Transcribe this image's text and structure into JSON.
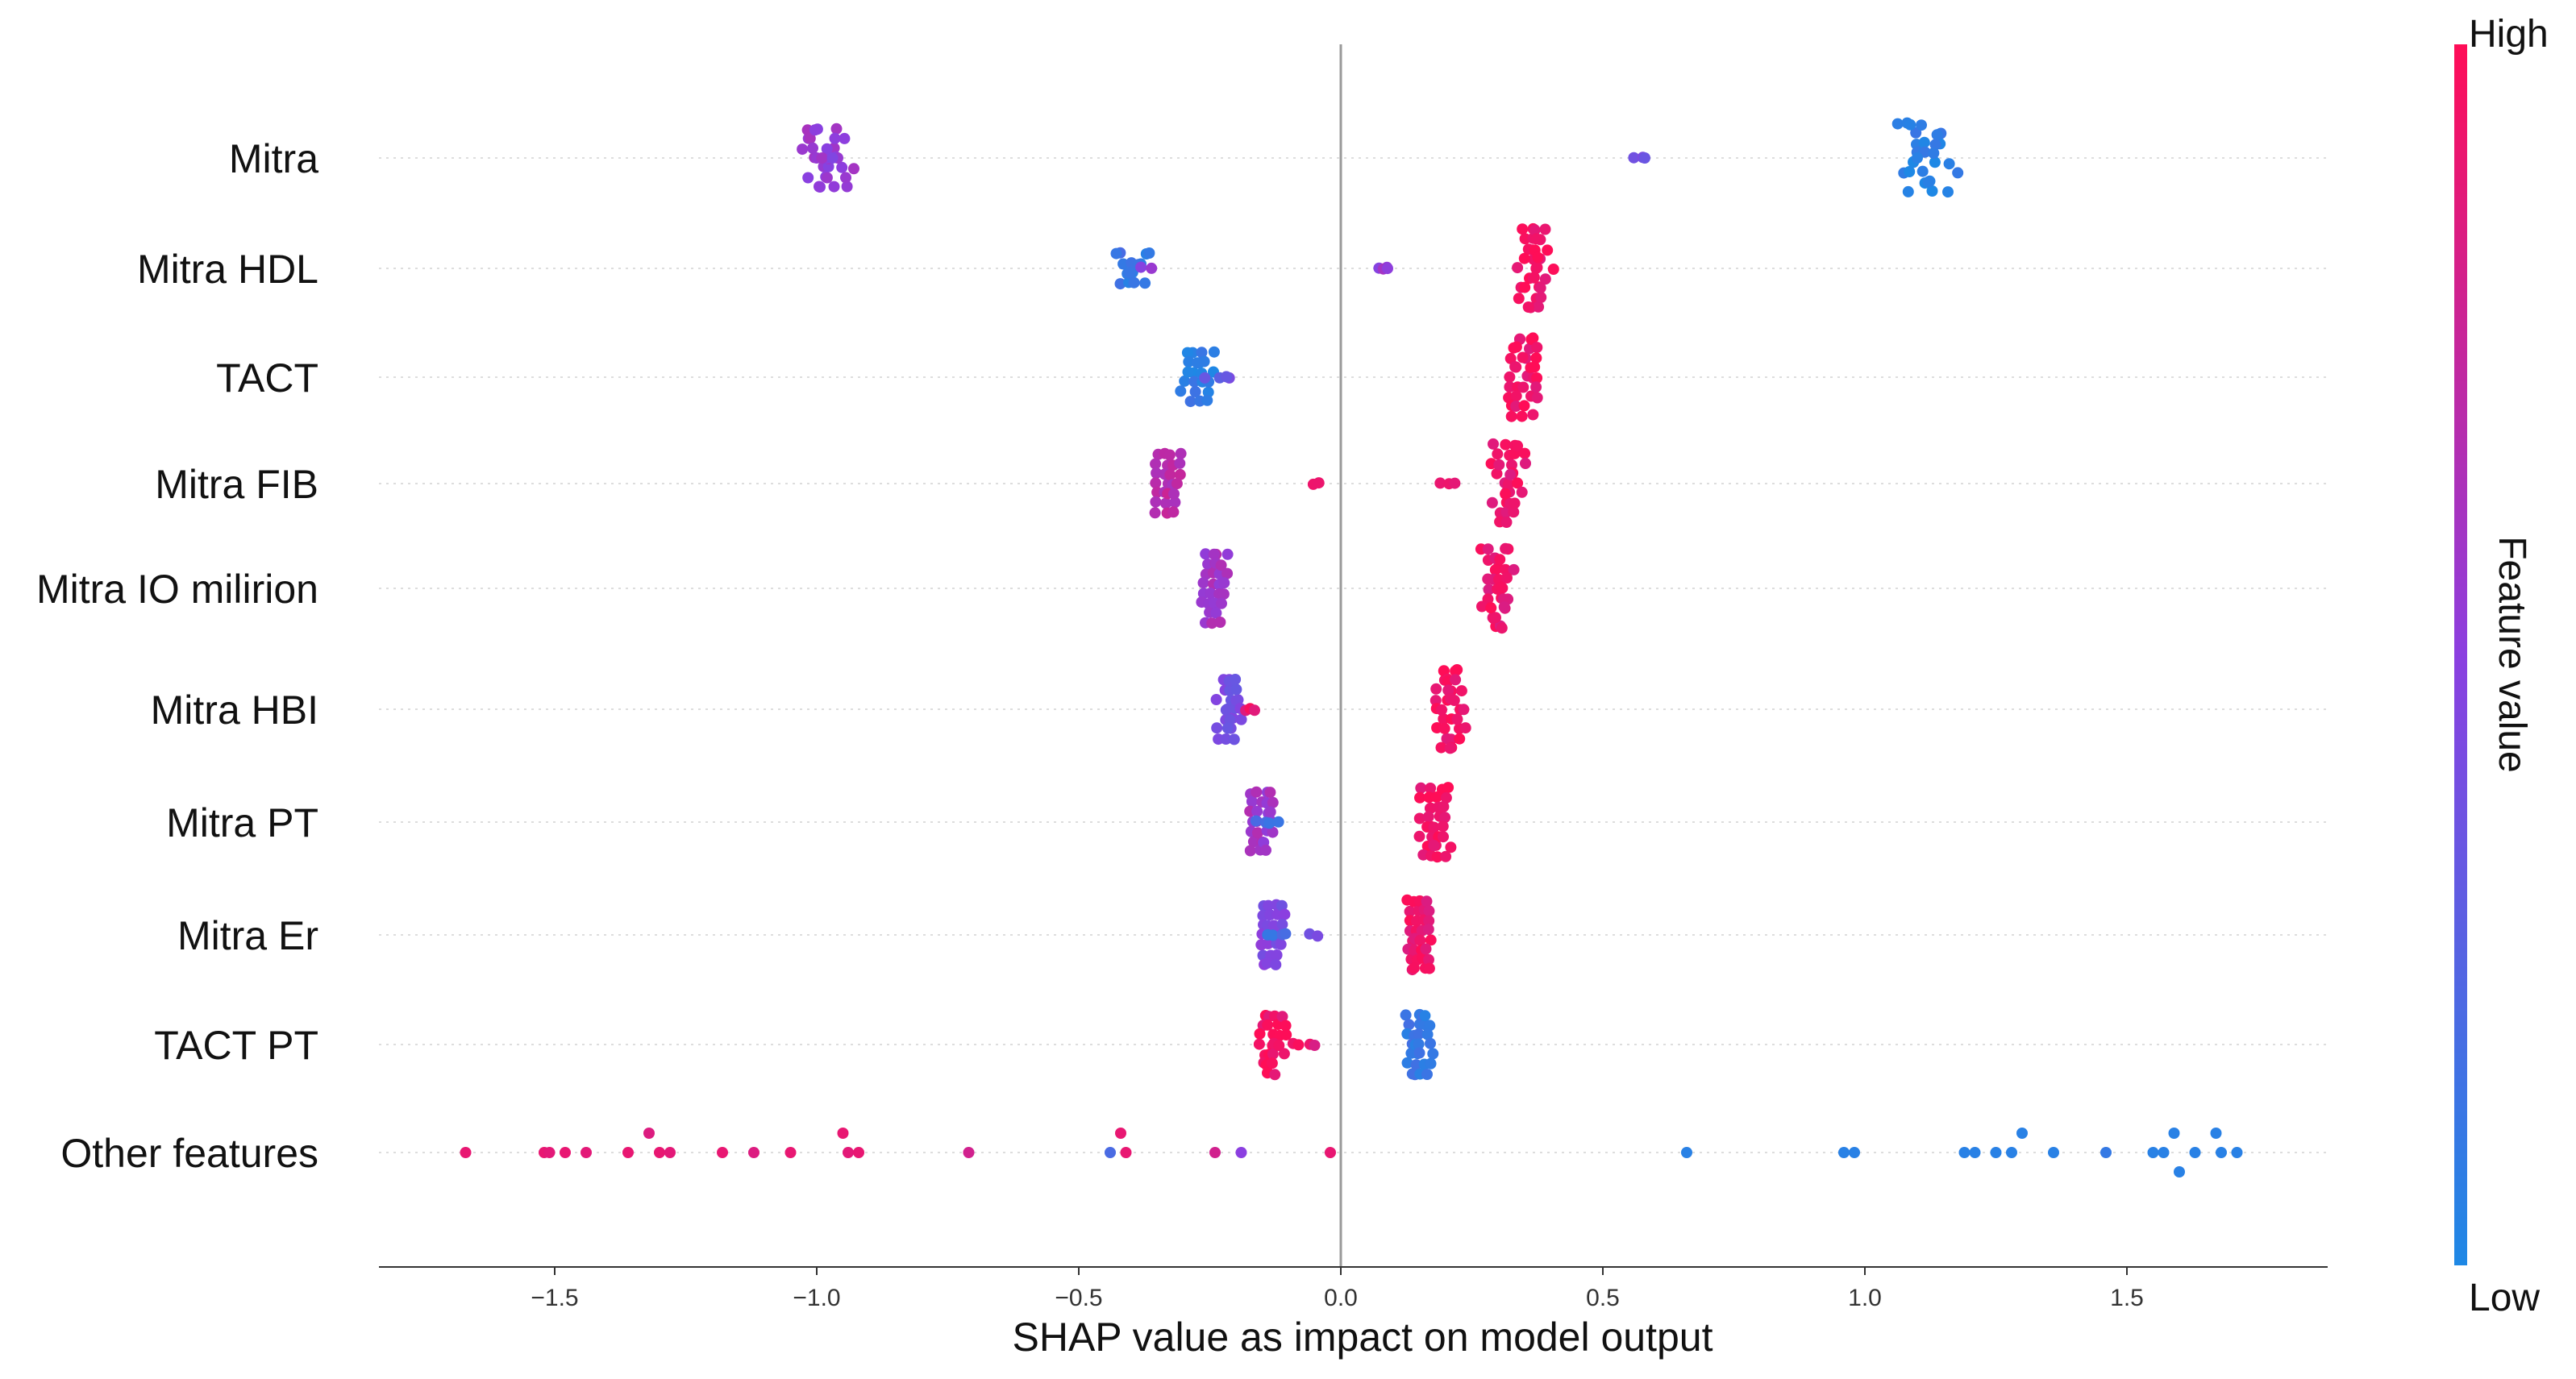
{
  "chart_data": {
    "type": "scatter",
    "subtype": "shap-beeswarm",
    "title": "",
    "xlabel": "SHAP value as impact on model output",
    "ylabel": "",
    "xlim": [
      -1.83,
      1.89
    ],
    "xticks": [
      -1.5,
      -1.0,
      -0.5,
      0.0,
      0.5,
      1.0,
      1.5
    ],
    "xtick_labels": [
      "−1.5",
      "−1.0",
      "−0.5",
      "0.0",
      "0.5",
      "1.0",
      "1.5"
    ],
    "colorbar": {
      "label": "Feature value",
      "high": "High",
      "low": "Low",
      "color_low": "#1e88e5",
      "color_high": "#ff0d57"
    },
    "series": [
      {
        "name": "Mitra",
        "points": [
          [
            -1.0,
            0.55
          ],
          [
            -0.98,
            0.5
          ],
          [
            -0.96,
            0.55
          ],
          [
            -0.99,
            0.6
          ],
          [
            -0.97,
            0.45
          ],
          [
            0.58,
            0.35
          ],
          [
            1.1,
            0.05
          ]
        ],
        "groups": [
          {
            "center": -0.98,
            "count": 28,
            "value": 0.55,
            "jitter": 0.035
          },
          {
            "center": 0.58,
            "count": 2,
            "value": 0.35,
            "jitter": 0.005
          },
          {
            "center": 1.12,
            "count": 30,
            "value": 0.05,
            "jitter": 0.04
          }
        ]
      },
      {
        "name": "Mitra HDL",
        "groups": [
          {
            "center": -0.4,
            "count": 16,
            "value": 0.12,
            "jitter": 0.025
          },
          {
            "center": -0.36,
            "count": 2,
            "value": 0.55,
            "jitter": 0.01
          },
          {
            "center": 0.09,
            "count": 4,
            "value": 0.55,
            "jitter": 0.02
          },
          {
            "center": 0.37,
            "count": 34,
            "value": 0.95,
            "jitter": 0.018
          }
        ]
      },
      {
        "name": "TACT",
        "groups": [
          {
            "center": -0.27,
            "count": 22,
            "value": 0.08,
            "jitter": 0.02
          },
          {
            "center": -0.23,
            "count": 4,
            "value": 0.35,
            "jitter": 0.012
          },
          {
            "center": 0.35,
            "count": 34,
            "value": 0.95,
            "jitter": 0.012
          }
        ]
      },
      {
        "name": "Mitra FIB",
        "groups": [
          {
            "center": -0.33,
            "count": 26,
            "value": 0.7,
            "jitter": 0.008
          },
          {
            "center": -0.03,
            "count": 2,
            "value": 0.9,
            "jitter": 0.006
          },
          {
            "center": 0.21,
            "count": 3,
            "value": 0.92,
            "jitter": 0.003
          },
          {
            "center": 0.32,
            "count": 34,
            "value": 0.92,
            "jitter": 0.015
          }
        ]
      },
      {
        "name": "Mitra IO milirion",
        "groups": [
          {
            "center": -0.24,
            "count": 30,
            "value": 0.6,
            "jitter": 0.008
          },
          {
            "center": 0.3,
            "count": 34,
            "value": 0.92,
            "jitter": 0.015
          }
        ]
      },
      {
        "name": "Mitra HBI",
        "groups": [
          {
            "center": -0.21,
            "count": 26,
            "value": 0.4,
            "jitter": 0.012
          },
          {
            "center": -0.17,
            "count": 3,
            "value": 0.9,
            "jitter": 0.01
          },
          {
            "center": 0.21,
            "count": 34,
            "value": 0.95,
            "jitter": 0.012
          }
        ]
      },
      {
        "name": "Mitra PT",
        "groups": [
          {
            "center": -0.15,
            "count": 26,
            "value": 0.6,
            "jitter": 0.006
          },
          {
            "center": -0.14,
            "count": 4,
            "value": 0.15,
            "jitter": 0.008
          },
          {
            "center": 0.18,
            "count": 32,
            "value": 0.95,
            "jitter": 0.012
          }
        ]
      },
      {
        "name": "Mitra Er",
        "groups": [
          {
            "center": -0.13,
            "count": 26,
            "value": 0.45,
            "jitter": 0.005
          },
          {
            "center": -0.12,
            "count": 4,
            "value": 0.15,
            "jitter": 0.004
          },
          {
            "center": -0.04,
            "count": 2,
            "value": 0.45,
            "jitter": 0.003
          },
          {
            "center": 0.15,
            "count": 32,
            "value": 0.92,
            "jitter": 0.006
          }
        ]
      },
      {
        "name": "TACT PT",
        "groups": [
          {
            "center": -0.13,
            "count": 26,
            "value": 0.95,
            "jitter": 0.008
          },
          {
            "center": -0.07,
            "count": 4,
            "value": 0.9,
            "jitter": 0.008
          },
          {
            "center": 0.15,
            "count": 28,
            "value": 0.1,
            "jitter": 0.008
          }
        ]
      },
      {
        "name": "Other features",
        "points": [
          [
            -1.67,
            0.9
          ],
          [
            -1.52,
            0.9
          ],
          [
            -1.51,
            0.88
          ],
          [
            -1.48,
            0.9
          ],
          [
            -1.44,
            0.88
          ],
          [
            -1.36,
            0.9
          ],
          [
            -1.32,
            0.85
          ],
          [
            -1.3,
            0.9
          ],
          [
            -1.28,
            0.88
          ],
          [
            -1.18,
            0.9
          ],
          [
            -1.12,
            0.85
          ],
          [
            -1.05,
            0.9
          ],
          [
            -0.95,
            0.9
          ],
          [
            -0.94,
            0.88
          ],
          [
            -0.92,
            0.9
          ],
          [
            -0.71,
            0.8
          ],
          [
            -0.44,
            0.2
          ],
          [
            -0.42,
            0.9
          ],
          [
            -0.41,
            0.9
          ],
          [
            -0.24,
            0.8
          ],
          [
            -0.19,
            0.5
          ],
          [
            -0.02,
            0.9
          ],
          [
            0.66,
            0.05
          ],
          [
            0.96,
            0.05
          ],
          [
            0.98,
            0.05
          ],
          [
            1.19,
            0.05
          ],
          [
            1.21,
            0.05
          ],
          [
            1.25,
            0.05
          ],
          [
            1.28,
            0.05
          ],
          [
            1.3,
            0.05
          ],
          [
            1.36,
            0.05
          ],
          [
            1.46,
            0.1
          ],
          [
            1.55,
            0.05
          ],
          [
            1.57,
            0.05
          ],
          [
            1.59,
            0.05
          ],
          [
            1.6,
            0.05
          ],
          [
            1.63,
            0.05
          ],
          [
            1.67,
            0.05
          ],
          [
            1.68,
            0.05
          ],
          [
            1.71,
            0.05
          ]
        ],
        "point_rows": [
          0,
          0,
          0,
          0,
          0,
          0,
          -1,
          0,
          0,
          0,
          0,
          0,
          -1,
          0,
          0,
          0,
          0,
          -1,
          0,
          0,
          0,
          0,
          0,
          0,
          0,
          0,
          0,
          0,
          0,
          -1,
          0,
          0,
          0,
          0,
          -1,
          1,
          0,
          -1,
          0,
          0
        ]
      }
    ]
  }
}
